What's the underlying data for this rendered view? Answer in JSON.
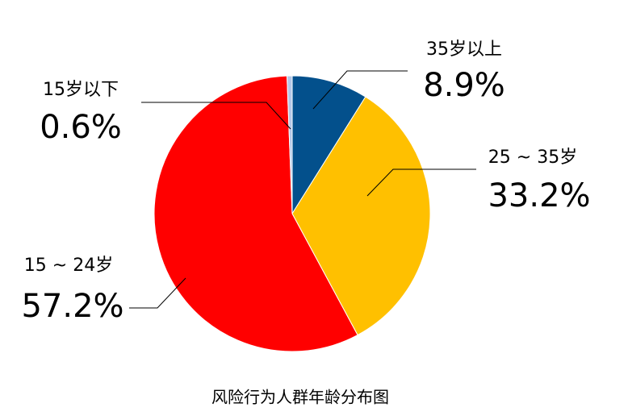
{
  "chart_data": {
    "type": "pie",
    "title": "风险行为人群年龄分布图",
    "categories": [
      "35岁以上",
      "25 ~ 35岁",
      "15 ~ 24岁",
      "15岁以下"
    ],
    "values": [
      8.9,
      33.2,
      57.2,
      0.6
    ],
    "value_labels": [
      "8.9%",
      "33.2%",
      "57.2%",
      "0.6%"
    ],
    "colors": [
      "#03508c",
      "#ffc000",
      "#ff0000",
      "#b4c7e7"
    ]
  }
}
